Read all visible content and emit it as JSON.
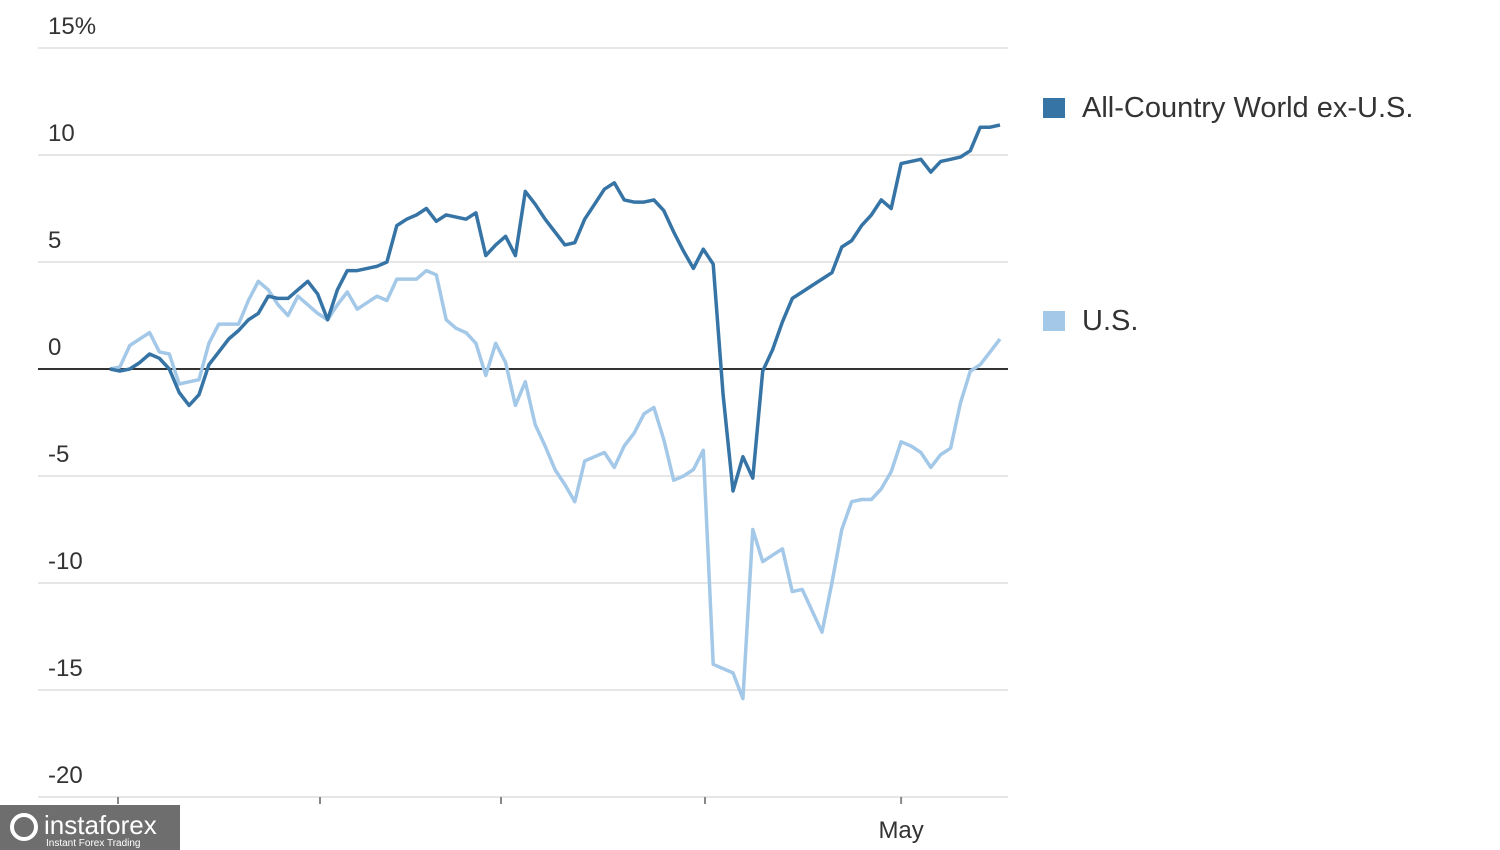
{
  "chart_data": {
    "type": "line",
    "categories": [
      null,
      null,
      null,
      null,
      null,
      null,
      null,
      null,
      null,
      null,
      null,
      null,
      null,
      null,
      null,
      null,
      null,
      null,
      null,
      null,
      null,
      null,
      null,
      null,
      null,
      null,
      null,
      null,
      null,
      null,
      null,
      null,
      null,
      null,
      null,
      null,
      null,
      null,
      null,
      null,
      null,
      null,
      null,
      null,
      null,
      null,
      null,
      null,
      null,
      null,
      null,
      null,
      null,
      null,
      null,
      null,
      null,
      null,
      null,
      null,
      null,
      null,
      null,
      null,
      null,
      null,
      null,
      null,
      null,
      null,
      null,
      null,
      null,
      null,
      null,
      null,
      null,
      null,
      null,
      null,
      "May",
      null,
      null,
      null,
      null,
      null,
      null,
      null,
      null,
      null,
      null
    ],
    "series": [
      {
        "name": "All-Country World ex-U.S.",
        "color": "#3674a6",
        "values": [
          0,
          -0.1,
          0,
          0.3,
          0.7,
          0.5,
          0,
          -1.1,
          -1.7,
          -1.2,
          0.2,
          0.8,
          1.4,
          1.8,
          2.3,
          2.6,
          3.4,
          3.3,
          3.3,
          3.7,
          4.1,
          3.5,
          2.3,
          3.7,
          4.6,
          4.6,
          4.7,
          4.8,
          5.0,
          6.7,
          7.0,
          7.2,
          7.5,
          6.9,
          7.2,
          7.1,
          7.0,
          7.3,
          5.3,
          5.8,
          6.2,
          5.3,
          8.3,
          7.7,
          7.0,
          6.4,
          5.8,
          5.9,
          7.0,
          7.7,
          8.4,
          8.7,
          7.9,
          7.8,
          7.8,
          7.9,
          7.4,
          6.4,
          5.5,
          4.7,
          5.6,
          4.9,
          -1.2,
          -5.7,
          -4.1,
          -5.1,
          -0.1,
          0.9,
          2.2,
          3.3,
          3.6,
          3.9,
          4.2,
          4.5,
          5.7,
          6.0,
          6.7,
          7.2,
          7.9,
          7.5,
          9.6,
          9.7,
          9.8,
          9.2,
          9.7,
          9.8,
          9.9,
          10.2,
          11.3,
          11.3,
          11.4
        ]
      },
      {
        "name": "U.S.",
        "color": "#a3c8e8",
        "values": [
          0,
          0.1,
          1.1,
          1.4,
          1.7,
          0.8,
          0.7,
          -0.7,
          -0.6,
          -0.5,
          1.2,
          2.1,
          2.1,
          2.1,
          3.2,
          4.1,
          3.7,
          3.0,
          2.5,
          3.4,
          3.0,
          2.6,
          2.3,
          3.0,
          3.6,
          2.8,
          3.1,
          3.4,
          3.2,
          4.2,
          4.2,
          4.2,
          4.6,
          4.4,
          2.3,
          1.9,
          1.7,
          1.2,
          -0.3,
          1.2,
          0.3,
          -1.7,
          -0.6,
          -2.6,
          -3.6,
          -4.7,
          -5.4,
          -6.2,
          -4.3,
          -4.1,
          -3.9,
          -4.6,
          -3.6,
          -3.0,
          -2.1,
          -1.8,
          -3.3,
          -5.2,
          -5.0,
          -4.7,
          -3.8,
          -13.8,
          -14.0,
          -14.2,
          -15.4,
          -7.5,
          -9.0,
          -8.7,
          -8.4,
          -10.4,
          -10.3,
          -11.3,
          -12.3,
          -10.0,
          -7.5,
          -6.2,
          -6.1,
          -6.1,
          -5.6,
          -4.8,
          -3.4,
          -3.6,
          -3.9,
          -4.6,
          -4.0,
          -3.7,
          -1.6,
          -0.1,
          0.2,
          0.8,
          1.4
        ]
      }
    ],
    "ylim": [
      -20,
      15
    ],
    "yticks": [
      -20,
      -15,
      -10,
      -5,
      0,
      5,
      10,
      {
        "value": 15,
        "label": "15%"
      }
    ],
    "grid": true
  },
  "watermark": {
    "brand": "instaforex",
    "tagline": "Instant Forex Trading"
  }
}
